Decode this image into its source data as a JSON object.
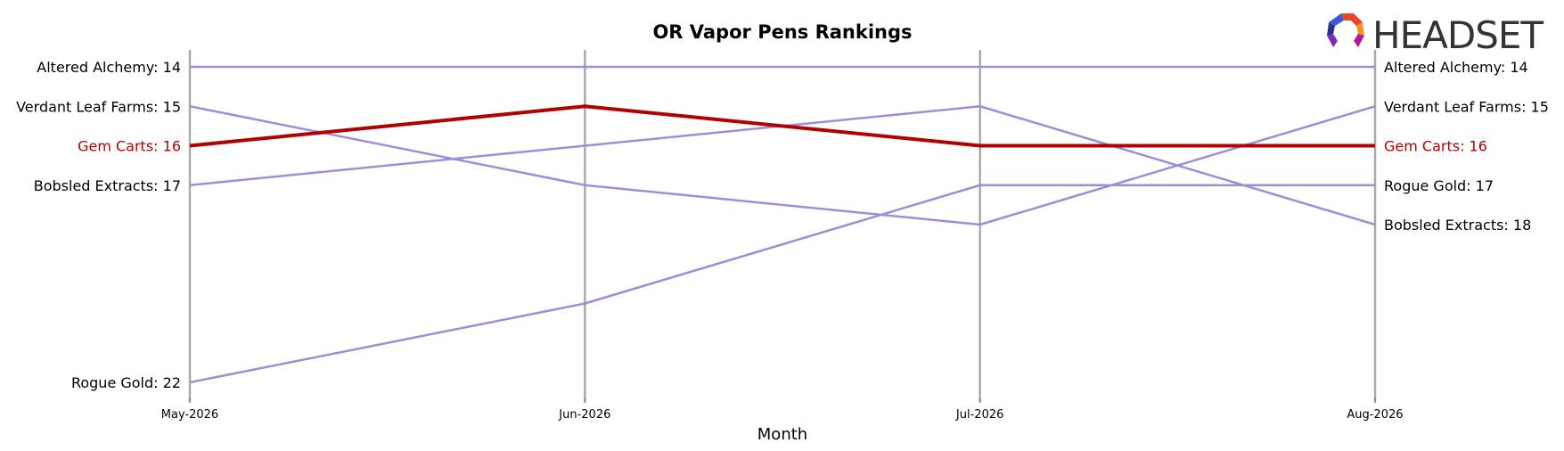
{
  "chart_data": {
    "type": "line",
    "title": "OR Vapor Pens Rankings",
    "xlabel": "Month",
    "ylabel": "",
    "categories": [
      "May-2026",
      "Jun-2026",
      "Jul-2026",
      "Aug-2026"
    ],
    "ylim": [
      22,
      14
    ],
    "y_inverted": true,
    "grid": "vertical lines at each month",
    "highlight_series": "Gem Carts",
    "series": [
      {
        "name": "Altered Alchemy",
        "values": [
          14,
          14,
          14,
          14
        ],
        "start_label": "Altered Alchemy: 14",
        "end_label": "Altered Alchemy: 14",
        "color": "#9b8fd8"
      },
      {
        "name": "Verdant Leaf Farms",
        "values": [
          15,
          17,
          18,
          15
        ],
        "start_label": "Verdant Leaf Farms: 15",
        "end_label": "Verdant Leaf Farms: 15",
        "color": "#9b8fd8"
      },
      {
        "name": "Gem Carts",
        "values": [
          16,
          15,
          16,
          16
        ],
        "start_label": "Gem Carts: 16",
        "end_label": "Gem Carts: 16",
        "color": "#b30000"
      },
      {
        "name": "Bobsled Extracts",
        "values": [
          17,
          16,
          15,
          18
        ],
        "start_label": "Bobsled Extracts: 17",
        "end_label": "Bobsled Extracts: 18",
        "color": "#9b8fd8"
      },
      {
        "name": "Rogue Gold",
        "values": [
          22,
          20,
          17,
          17
        ],
        "start_label": "Rogue Gold: 22",
        "end_label": "Rogue Gold: 17",
        "color": "#9b8fd8"
      }
    ]
  },
  "logo": {
    "text": "HEADSET",
    "colors": [
      "#e8462f",
      "#f39322",
      "#b5179e",
      "#7b2cbf",
      "#2d2f8f",
      "#3a5bd9"
    ]
  }
}
